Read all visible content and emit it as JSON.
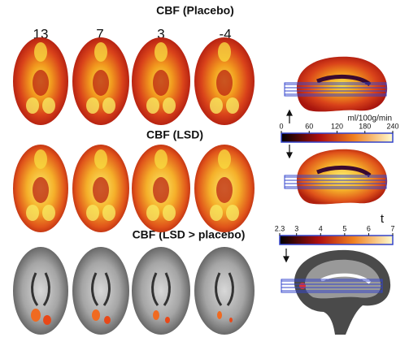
{
  "panels": [
    {
      "title": "CBF (Placebo)"
    },
    {
      "title": "CBF (LSD)"
    },
    {
      "title": "CBF (LSD > placebo)"
    }
  ],
  "slices": [
    13,
    7,
    3,
    -4
  ],
  "cbf_colorbar": {
    "unit": "ml/100g/min",
    "ticks": [
      0,
      60,
      120,
      180,
      240
    ]
  },
  "t_colorbar": {
    "label": "t",
    "ticks": [
      2.3,
      3,
      4,
      5,
      6,
      7
    ]
  }
}
